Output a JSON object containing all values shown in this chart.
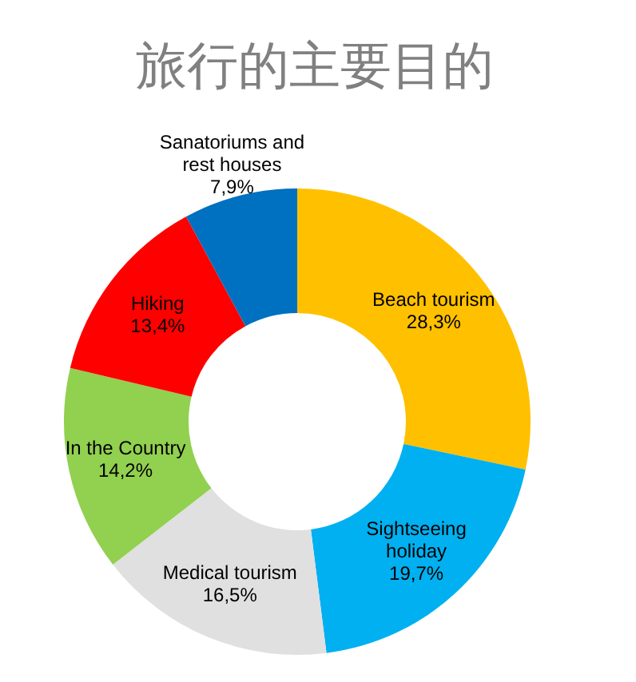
{
  "chart_data": {
    "type": "donut",
    "title": "旅行的主要目的",
    "categories": [
      "Beach tourism",
      "Sightseeing holiday",
      "Medical tourism",
      "In the Country",
      "Hiking",
      "Sanatoriums and rest houses"
    ],
    "values": [
      28.3,
      19.7,
      16.5,
      14.2,
      13.4,
      7.9
    ],
    "value_labels": [
      "28,3%",
      "19,7%",
      "16,5%",
      "14,2%",
      "13,4%",
      "7,9%"
    ],
    "colors": [
      "#ffc000",
      "#00b0f0",
      "#e0e0e0",
      "#92d050",
      "#ff0000",
      "#0070c0"
    ]
  }
}
